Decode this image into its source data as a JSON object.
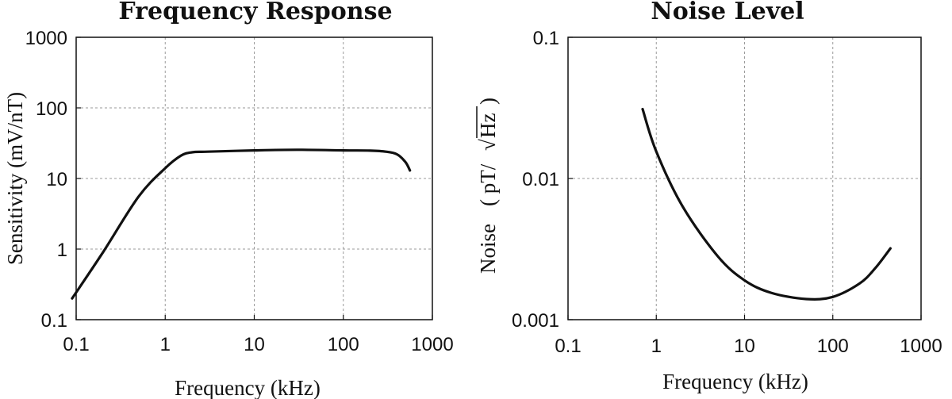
{
  "chart_data": [
    {
      "type": "line",
      "title": "Frequency Response",
      "xlabel": "Frequency (kHz)",
      "ylabel": "Sensitivity (mV/nT)",
      "x_scale": "log",
      "y_scale": "log",
      "xlim": [
        0.1,
        1000
      ],
      "ylim": [
        0.1,
        1000
      ],
      "x_ticks": [
        "0.1",
        "1",
        "10",
        "100",
        "1000"
      ],
      "y_ticks": [
        "0.1",
        "1",
        "10",
        "100",
        "1000"
      ],
      "grid": true,
      "series": [
        {
          "x": [
            0.09,
            0.2,
            0.5,
            1,
            1.5,
            2,
            3,
            10,
            30,
            100,
            200,
            300,
            400,
            500,
            560
          ],
          "y": [
            0.2,
            0.9,
            5.5,
            14,
            21,
            23.5,
            24,
            25,
            25.5,
            25,
            24.8,
            24,
            22,
            17,
            13
          ]
        }
      ]
    },
    {
      "type": "line",
      "title": "Noise Level",
      "xlabel": "Frequency (kHz)",
      "ylabel_prefix": "Noise",
      "ylabel_unit_left": "( pT/",
      "ylabel_unit_sqrt": "√",
      "ylabel_unit_radicand": "Hz",
      "ylabel_unit_right": ")",
      "x_scale": "log",
      "y_scale": "log",
      "xlim": [
        0.1,
        1000
      ],
      "ylim": [
        0.001,
        0.1
      ],
      "x_ticks": [
        "0.1",
        "1",
        "10",
        "100",
        "1000"
      ],
      "y_ticks": [
        "0.001",
        "0.01",
        "0.1"
      ],
      "grid": true,
      "series": [
        {
          "x": [
            0.7,
            1,
            2,
            5,
            10,
            20,
            50,
            100,
            200,
            300,
            450
          ],
          "y": [
            0.031,
            0.0155,
            0.0063,
            0.0028,
            0.0019,
            0.00155,
            0.0014,
            0.00145,
            0.0018,
            0.0023,
            0.0032
          ]
        }
      ]
    }
  ]
}
